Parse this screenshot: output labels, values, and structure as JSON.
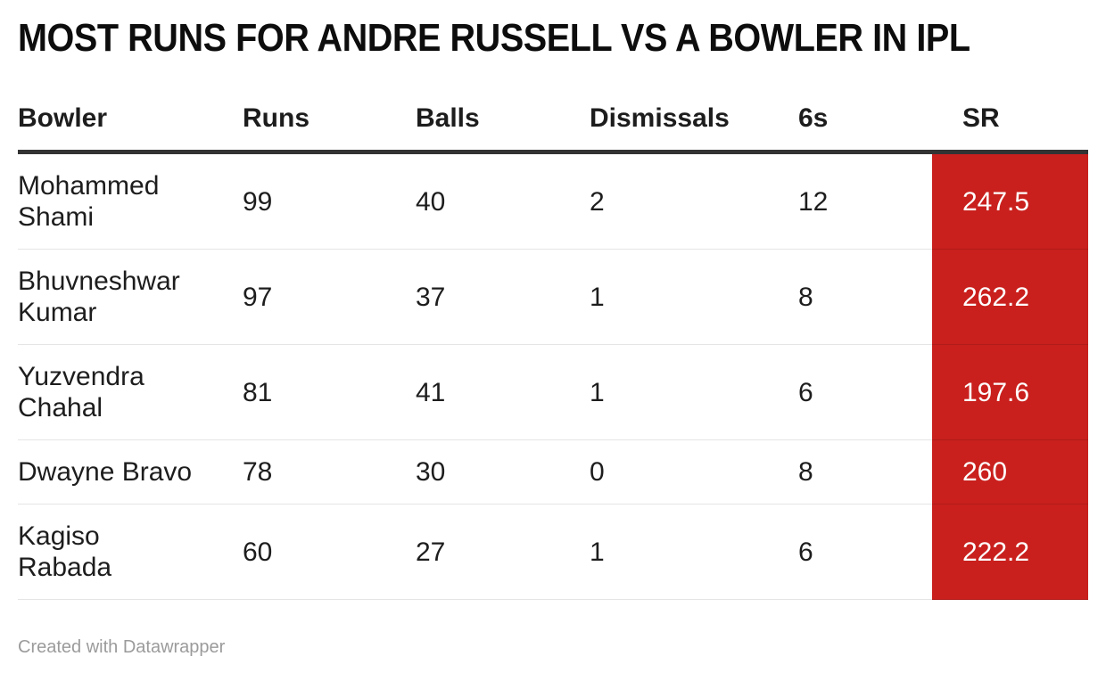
{
  "title": "MOST RUNS FOR ANDRE RUSSELL VS A BOWLER IN IPL",
  "table": {
    "columns": [
      "Bowler",
      "Runs",
      "Balls",
      "Dismissals",
      "6s",
      "SR"
    ],
    "rows": [
      {
        "bowler": "Mohammed\nShami",
        "runs": "99",
        "balls": "40",
        "dismissals": "2",
        "sixes": "12",
        "sr": "247.5"
      },
      {
        "bowler": "Bhuvneshwar\nKumar",
        "runs": "97",
        "balls": "37",
        "dismissals": "1",
        "sixes": "8",
        "sr": "262.2"
      },
      {
        "bowler": "Yuzvendra\nChahal",
        "runs": "81",
        "balls": "41",
        "dismissals": "1",
        "sixes": "6",
        "sr": "197.6"
      },
      {
        "bowler": "Dwayne Bravo",
        "runs": "78",
        "balls": "30",
        "dismissals": "0",
        "sixes": "8",
        "sr": "260"
      },
      {
        "bowler": "Kagiso\nRabada",
        "runs": "60",
        "balls": "27",
        "dismissals": "1",
        "sixes": "6",
        "sr": "222.2"
      }
    ]
  },
  "chart_data": {
    "type": "table",
    "title": "MOST RUNS FOR ANDRE RUSSELL VS A BOWLER IN IPL",
    "columns": [
      "Bowler",
      "Runs",
      "Balls",
      "Dismissals",
      "6s",
      "SR"
    ],
    "rows": [
      [
        "Mohammed Shami",
        99,
        40,
        2,
        12,
        247.5
      ],
      [
        "Bhuvneshwar Kumar",
        97,
        37,
        1,
        8,
        262.2
      ],
      [
        "Yuzvendra Chahal",
        81,
        41,
        1,
        6,
        197.6
      ],
      [
        "Dwayne Bravo",
        78,
        30,
        0,
        8,
        260
      ],
      [
        "Kagiso Rabada",
        60,
        27,
        1,
        6,
        222.2
      ]
    ],
    "highlight": {
      "column": "SR",
      "style": "solid-fill",
      "fill_color": "#c9201d",
      "text_color": "#ffffff"
    }
  },
  "footer": {
    "credit": "Created with Datawrapper"
  },
  "colors": {
    "sr_cell_bg": "#c9201d",
    "sr_cell_text": "#ffffff",
    "header_rule": "#333333",
    "body_text": "#1d1d1d",
    "credit_text": "#9b9b9b"
  }
}
